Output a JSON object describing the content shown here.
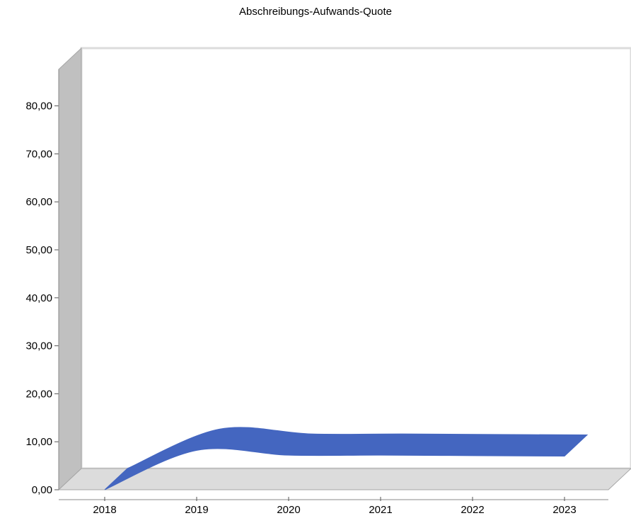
{
  "chart_data": {
    "type": "area",
    "title": "Abschreibungs-Aufwands-Quote",
    "xlabel": "",
    "ylabel": "",
    "categories": [
      "2018",
      "2019",
      "2020",
      "2021",
      "2022",
      "2023"
    ],
    "series": [
      {
        "values": [
          0.0,
          8.2,
          7.2,
          7.2,
          7.1,
          7.0
        ]
      }
    ],
    "ylim": [
      0,
      88
    ],
    "yticks": [
      "0,00",
      "10,00",
      "20,00",
      "30,00",
      "40,00",
      "50,00",
      "60,00",
      "70,00",
      "80,00"
    ],
    "grid": false,
    "style": "3d",
    "colors": {
      "series": "#4466c0",
      "wall": "#c0c0c0",
      "floor": "#dcdcdc",
      "edge": "#a6a6a6"
    }
  }
}
